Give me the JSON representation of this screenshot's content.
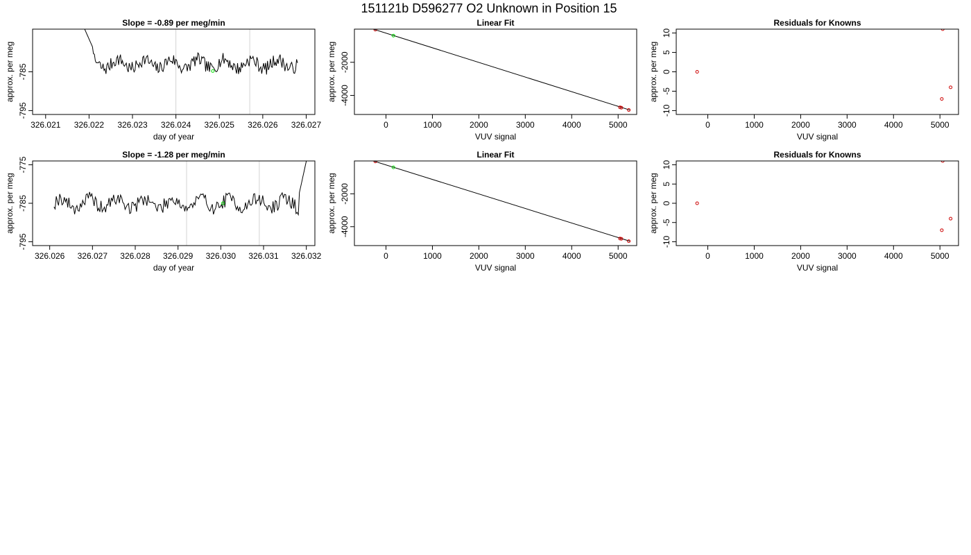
{
  "figure_title": "151121b     D596277   O2 Unknown in Position  15",
  "colors": {
    "line": "#000000",
    "grid_marker": "#d3d3d3",
    "known_point": "#cc0000",
    "unknown_point": "#00dd00",
    "frame": "#000000"
  },
  "chart_data": [
    {
      "id": "timeseries-1",
      "type": "line",
      "title": "Slope =  -0.89  per meg/min",
      "xlabel": "day of year",
      "ylabel": "approx. per meg",
      "xlim": [
        326.0207,
        326.0272
      ],
      "ylim": [
        -796,
        -774
      ],
      "xticks": [
        326.021,
        326.022,
        326.023,
        326.024,
        326.025,
        326.026,
        326.027
      ],
      "xtick_labels": [
        "326.021",
        "326.022",
        "326.023",
        "326.024",
        "326.025",
        "326.026",
        "326.027"
      ],
      "yticks": [
        -795,
        -785
      ],
      "ytick_labels": [
        "-795",
        "-785"
      ],
      "vlines": [
        326.024,
        326.0257
      ],
      "x_start": 326.0219,
      "x_end": 326.0268,
      "base_level": -783,
      "noise_amp": 1.7,
      "wave_periods": 8,
      "seed": 7,
      "spike": {
        "side": "start",
        "from": -774,
        "to": -779,
        "length_frac": 0.04
      },
      "points": [
        {
          "x": 326.02485,
          "y": -784.8,
          "color": "#00dd00"
        }
      ]
    },
    {
      "id": "linear-fit-1",
      "type": "scatter",
      "title": "Linear Fit",
      "xlabel": "VUV signal",
      "ylabel": "approx. per meg",
      "xlim": [
        -680,
        5400
      ],
      "ylim": [
        -5150,
        0
      ],
      "xticks": [
        0,
        1000,
        2000,
        3000,
        4000,
        5000
      ],
      "xtick_labels": [
        "0",
        "1000",
        "2000",
        "3000",
        "4000",
        "5000"
      ],
      "yticks": [
        -4000,
        -2000
      ],
      "ytick_labels": [
        "-4000",
        "-2000"
      ],
      "fit_line": {
        "x1": -500,
        "y1": 200,
        "x2": 5250,
        "y2": -4880
      },
      "points": [
        {
          "x": -230,
          "y": -30,
          "color": "#cc0000"
        },
        {
          "x": 160,
          "y": -390,
          "color": "#00dd00"
        },
        {
          "x": 5040,
          "y": -4720,
          "color": "#cc0000"
        },
        {
          "x": 5070,
          "y": -4740,
          "color": "#cc0000"
        },
        {
          "x": 5230,
          "y": -4880,
          "color": "#cc0000"
        }
      ]
    },
    {
      "id": "residuals-1",
      "type": "scatter",
      "title": "Residuals for Knowns",
      "xlabel": "VUV signal",
      "ylabel": "approx. per meg",
      "xlim": [
        -680,
        5400
      ],
      "ylim": [
        -11,
        11
      ],
      "xticks": [
        0,
        1000,
        2000,
        3000,
        4000,
        5000
      ],
      "xtick_labels": [
        "0",
        "1000",
        "2000",
        "3000",
        "4000",
        "5000"
      ],
      "yticks": [
        -10,
        -5,
        0,
        5,
        10
      ],
      "ytick_labels": [
        "-10",
        "-5",
        "0",
        "5",
        "10"
      ],
      "points": [
        {
          "x": -230,
          "y": 0,
          "color": "#cc0000"
        },
        {
          "x": 5060,
          "y": 11,
          "color": "#cc0000"
        },
        {
          "x": 5040,
          "y": -7,
          "color": "#cc0000"
        },
        {
          "x": 5230,
          "y": -4,
          "color": "#cc0000"
        }
      ]
    },
    {
      "id": "timeseries-2",
      "type": "line",
      "title": "Slope =  -1.28  per meg/min",
      "xlabel": "day of year",
      "ylabel": "approx. per meg",
      "xlim": [
        326.0256,
        326.0322
      ],
      "ylim": [
        -796,
        -774
      ],
      "xticks": [
        326.026,
        326.027,
        326.028,
        326.029,
        326.03,
        326.031,
        326.032
      ],
      "xtick_labels": [
        "326.026",
        "326.027",
        "326.028",
        "326.029",
        "326.030",
        "326.031",
        "326.032"
      ],
      "yticks": [
        -795,
        -785,
        -775
      ],
      "ytick_labels": [
        "-795",
        "-785",
        "-775"
      ],
      "vlines": [
        326.0292,
        326.0309
      ],
      "x_start": 326.0261,
      "x_end": 326.032,
      "base_level": -785,
      "noise_amp": 1.8,
      "wave_periods": 9,
      "seed": 19,
      "spike": {
        "side": "end",
        "from": -783,
        "to": -774,
        "length_frac": 0.03
      },
      "points": [
        {
          "x": 326.03005,
          "y": -785,
          "color": "#00dd00"
        }
      ]
    },
    {
      "id": "linear-fit-2",
      "type": "scatter",
      "title": "Linear Fit",
      "xlabel": "VUV signal",
      "ylabel": "approx. per meg",
      "xlim": [
        -680,
        5400
      ],
      "ylim": [
        -5150,
        0
      ],
      "xticks": [
        0,
        1000,
        2000,
        3000,
        4000,
        5000
      ],
      "xtick_labels": [
        "0",
        "1000",
        "2000",
        "3000",
        "4000",
        "5000"
      ],
      "yticks": [
        -4000,
        -2000
      ],
      "ytick_labels": [
        "-4000",
        "-2000"
      ],
      "fit_line": {
        "x1": -500,
        "y1": 200,
        "x2": 5250,
        "y2": -4880
      },
      "points": [
        {
          "x": -230,
          "y": -30,
          "color": "#cc0000"
        },
        {
          "x": 160,
          "y": -390,
          "color": "#00dd00"
        },
        {
          "x": 5040,
          "y": -4720,
          "color": "#cc0000"
        },
        {
          "x": 5070,
          "y": -4740,
          "color": "#cc0000"
        },
        {
          "x": 5230,
          "y": -4880,
          "color": "#cc0000"
        }
      ]
    },
    {
      "id": "residuals-2",
      "type": "scatter",
      "title": "Residuals for Knowns",
      "xlabel": "VUV signal",
      "ylabel": "approx. per meg",
      "xlim": [
        -680,
        5400
      ],
      "ylim": [
        -11,
        11
      ],
      "xticks": [
        0,
        1000,
        2000,
        3000,
        4000,
        5000
      ],
      "xtick_labels": [
        "0",
        "1000",
        "2000",
        "3000",
        "4000",
        "5000"
      ],
      "yticks": [
        -10,
        -5,
        0,
        5,
        10
      ],
      "ytick_labels": [
        "-10",
        "-5",
        "0",
        "5",
        "10"
      ],
      "points": [
        {
          "x": -230,
          "y": 0,
          "color": "#cc0000"
        },
        {
          "x": 5060,
          "y": 11,
          "color": "#cc0000"
        },
        {
          "x": 5040,
          "y": -7,
          "color": "#cc0000"
        },
        {
          "x": 5230,
          "y": -4,
          "color": "#cc0000"
        }
      ]
    }
  ]
}
